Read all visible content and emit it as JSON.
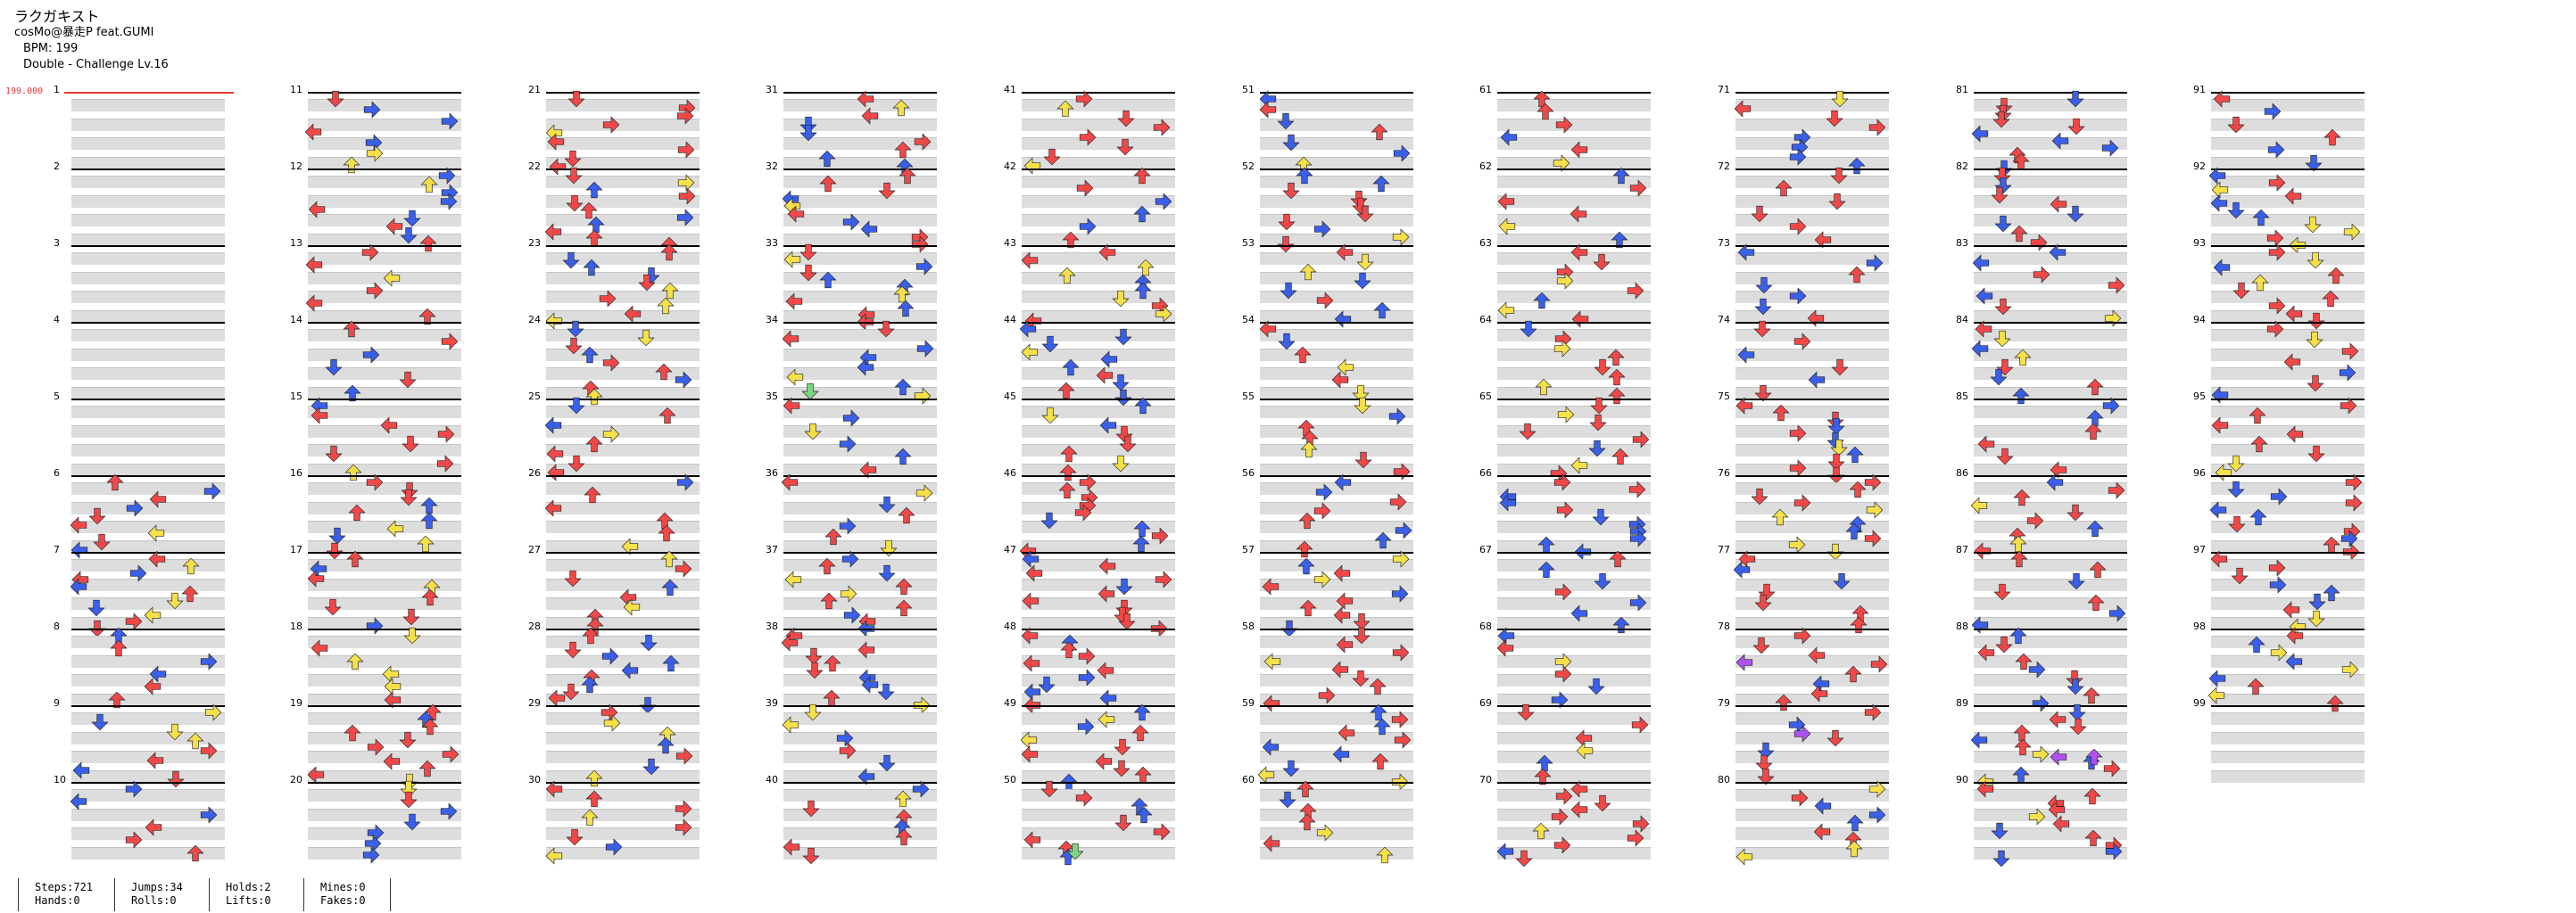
{
  "header": {
    "title": "ラクガキスト",
    "artist": "cosMo@暴走P feat.GUMI",
    "bpm": "BPM: 199",
    "difficulty": "Double - Challenge Lv.16"
  },
  "bpm_change_label": "199.000",
  "measures": [
    "1",
    "2",
    "3",
    "4",
    "5",
    "6",
    "7",
    "8",
    "9",
    "10",
    "11",
    "12",
    "13",
    "14",
    "15",
    "16",
    "17",
    "18",
    "19",
    "20",
    "21",
    "22",
    "23",
    "24",
    "25",
    "26",
    "27",
    "28",
    "29",
    "30",
    "31",
    "32",
    "33",
    "34",
    "35",
    "36",
    "37",
    "38",
    "39",
    "40",
    "41",
    "42",
    "43",
    "44",
    "45",
    "46",
    "47",
    "48",
    "49",
    "50",
    "51",
    "52",
    "53",
    "54",
    "55",
    "56",
    "57",
    "58",
    "59",
    "60",
    "61",
    "62",
    "63",
    "64",
    "65",
    "66",
    "67",
    "68",
    "69",
    "70",
    "71",
    "72",
    "73",
    "74",
    "75",
    "76",
    "77",
    "78",
    "79",
    "80",
    "81",
    "82",
    "83",
    "84",
    "85",
    "86",
    "87",
    "88",
    "89",
    "90",
    "91",
    "92",
    "93",
    "94",
    "95",
    "96",
    "97",
    "98",
    "99"
  ],
  "note_colors": {
    "red": "#f04848",
    "blue": "#3a5fe8",
    "yellow": "#f5e04a",
    "green": "#7ed67e",
    "purple": "#b050f0"
  },
  "stats": {
    "steps": "Steps:721",
    "hands": "Hands:0",
    "jumps": "Jumps:34",
    "rolls": "Rolls:0",
    "holds": "Holds:2",
    "lifts": "Lifts:0",
    "mines": "Mines:0",
    "fakes": "Fakes:0"
  }
}
